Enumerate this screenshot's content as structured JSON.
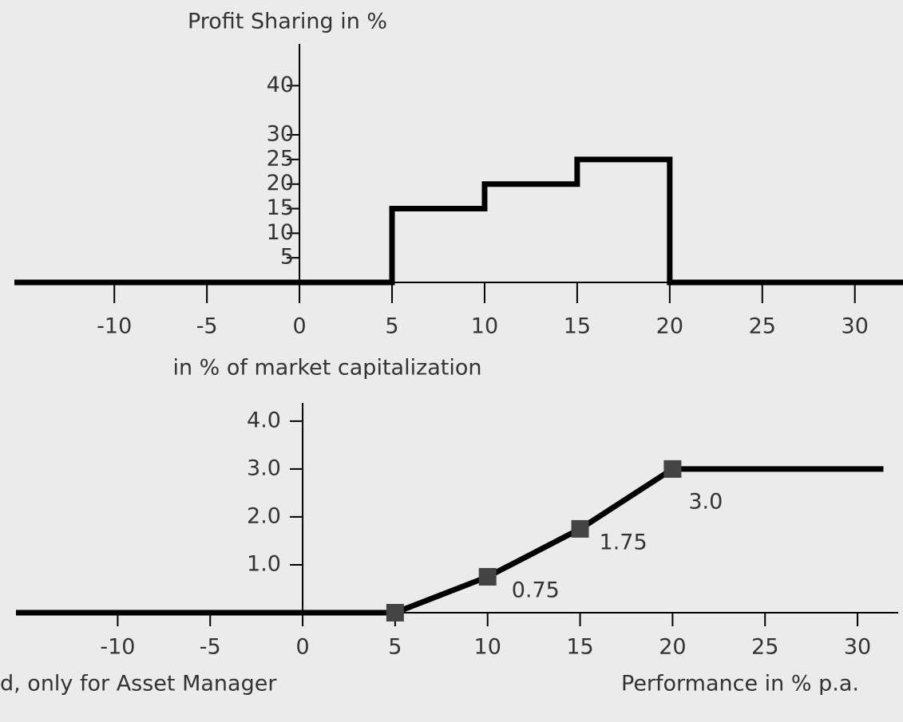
{
  "chart_data": [
    {
      "type": "line",
      "title": "Profit Sharing in %",
      "xlabel": "in % of market capitalization",
      "x": [
        -15.4,
        5,
        5,
        10,
        10,
        15,
        15,
        20,
        20,
        32.6
      ],
      "values": [
        0,
        0,
        15,
        15,
        20,
        20,
        25,
        25,
        0,
        0
      ],
      "color": "#000000",
      "xlim": [
        -15.4,
        32.6
      ],
      "ylim": [
        0,
        48.5
      ],
      "xticks": [
        -10,
        -5,
        0,
        5,
        10,
        15,
        20,
        25,
        30
      ],
      "yticks": [
        5,
        10,
        15,
        20,
        25,
        30,
        40
      ]
    },
    {
      "type": "line",
      "xlabel": "Performance in % p.a.",
      "footnote": "d, only for Asset Manager",
      "x": [
        -15.5,
        5,
        10,
        15,
        20,
        31.4
      ],
      "values": [
        0,
        0,
        0.75,
        1.75,
        3,
        3
      ],
      "color": "#000000",
      "markers": {
        "x": [
          5,
          10,
          15,
          20
        ],
        "values": [
          0,
          0.75,
          1.75,
          3
        ],
        "value_labels": [
          null,
          "0.75",
          "1.75",
          "3.0"
        ],
        "color": "#444444"
      },
      "xlim": [
        -15.5,
        32.2
      ],
      "ylim": [
        0,
        4.38
      ],
      "xticks": [
        -10,
        -5,
        0,
        5,
        10,
        15,
        20,
        25,
        30
      ],
      "yticks": [
        {
          "value": 1,
          "label": "1.0"
        },
        {
          "value": 2,
          "label": "2.0"
        },
        {
          "value": 3,
          "label": "3.0"
        },
        {
          "value": 4,
          "label": "4.0"
        }
      ]
    }
  ]
}
